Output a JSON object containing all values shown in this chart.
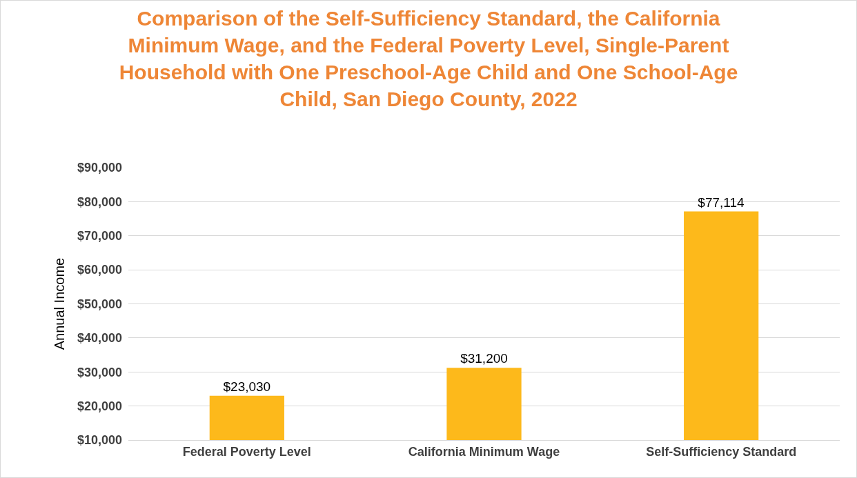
{
  "chart_data": {
    "type": "bar",
    "title": "Comparison of the Self-Sufficiency Standard, the California Minimum Wage, and the Federal Poverty Level, Single-Parent Household with One Preschool-Age Child and One School-Age Child, San Diego County, 2022",
    "ylabel": "Annual Income",
    "categories": [
      "Federal Poverty Level",
      "California Minimum Wage",
      "Self-Sufficiency Standard"
    ],
    "values": [
      23030,
      31200,
      77114
    ],
    "value_labels": [
      "$23,030",
      "$31,200",
      "$77,114"
    ],
    "color": "#fdb91b",
    "ylim": [
      10000,
      90000
    ],
    "yticks": [
      {
        "value": 10000,
        "label": "$10,000"
      },
      {
        "value": 20000,
        "label": "$20,000"
      },
      {
        "value": 30000,
        "label": "$30,000"
      },
      {
        "value": 40000,
        "label": "$40,000"
      },
      {
        "value": 50000,
        "label": "$50,000"
      },
      {
        "value": 60000,
        "label": "$60,000"
      },
      {
        "value": 70000,
        "label": "$70,000"
      },
      {
        "value": 80000,
        "label": "$80,000"
      },
      {
        "value": 90000,
        "label": "$90,000"
      }
    ],
    "grid": "y"
  }
}
